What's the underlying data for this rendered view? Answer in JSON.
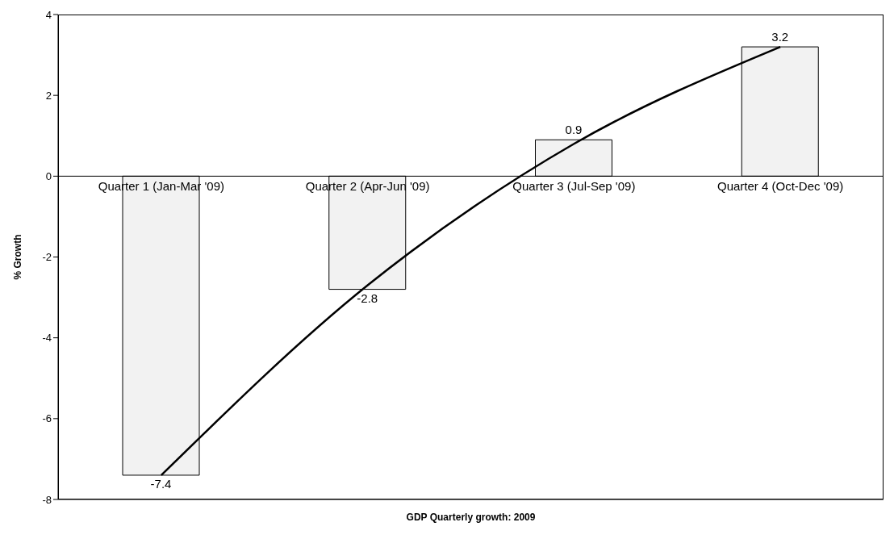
{
  "chart_data": {
    "type": "bar",
    "xlabel": "GDP Quarterly growth: 2009",
    "ylabel": "% Growth",
    "categories": [
      "Quarter 1 (Jan-Mar '09)",
      "Quarter 2 (Apr-Jun '09)",
      "Quarter 3 (Jul-Sep '09)",
      "Quarter 4 (Oct-Dec '09)"
    ],
    "series": [
      {
        "color": "#f2f2f2",
        "values": [
          -7.4,
          -2.8,
          0.9,
          3.2
        ],
        "value_labels": [
          "-7.4",
          "-2.8",
          "0.9",
          "3.2"
        ]
      },
      {
        "type": "line",
        "color": "#000000",
        "values": [
          -7.4,
          -2.7,
          0.8,
          3.2
        ]
      }
    ],
    "ylim": [
      -8,
      4
    ],
    "yticks": [
      -8,
      -6,
      -4,
      -2,
      0,
      2,
      4
    ]
  }
}
